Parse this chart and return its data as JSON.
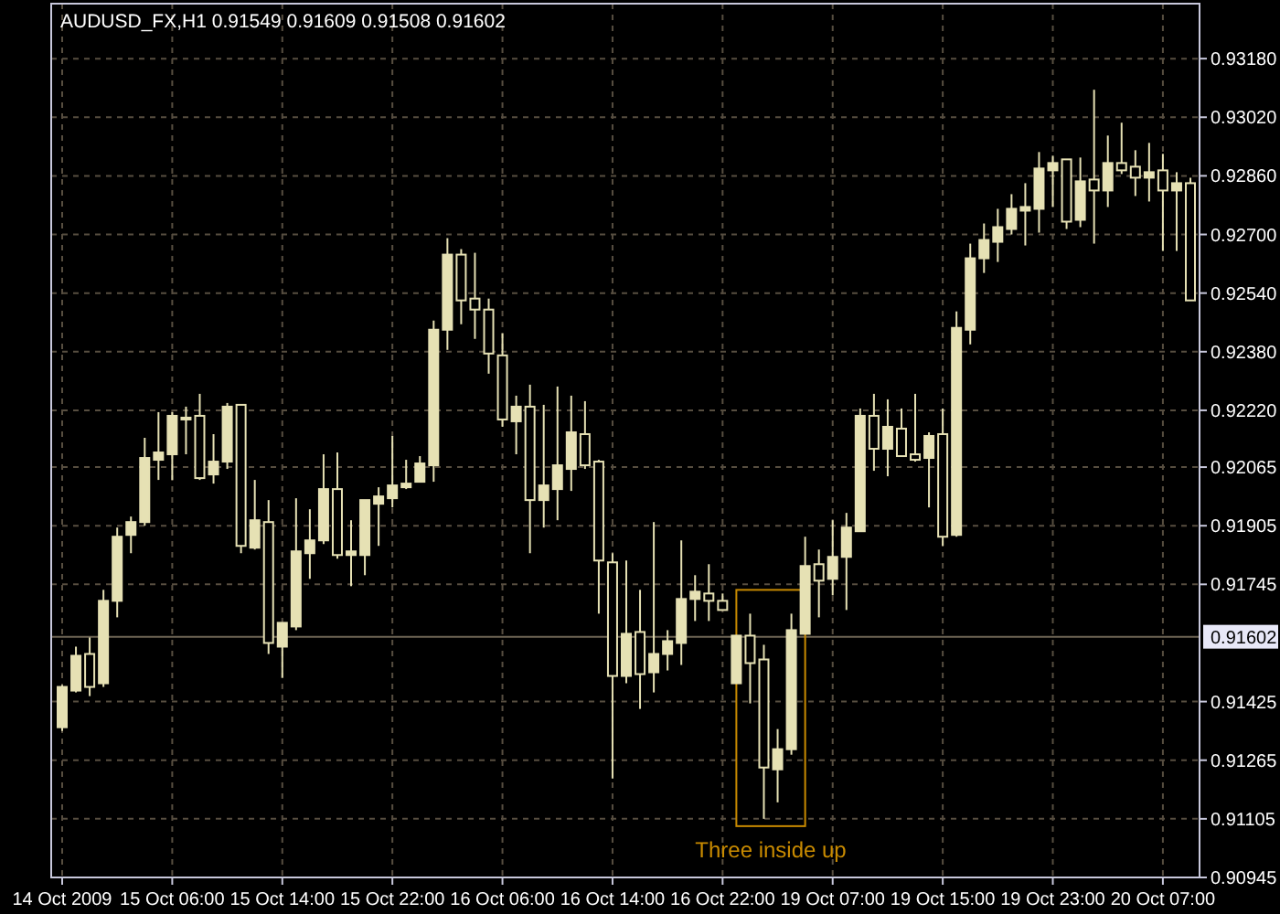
{
  "chart_data": {
    "type": "candlestick",
    "title": "AUDUSD_FX,H1 0.91549 0.91609 0.91508 0.91602",
    "color": "#e6e1b4",
    "categories": [
      "14 Oct 2009",
      null,
      null,
      null,
      null,
      null,
      null,
      null,
      "15 Oct 06:00",
      null,
      null,
      null,
      null,
      null,
      null,
      null,
      "15 Oct 14:00",
      null,
      null,
      null,
      null,
      null,
      null,
      null,
      "15 Oct 22:00",
      null,
      null,
      null,
      null,
      null,
      null,
      null,
      "16 Oct 06:00",
      null,
      null,
      null,
      null,
      null,
      null,
      null,
      "16 Oct 14:00",
      null,
      null,
      null,
      null,
      null,
      null,
      null,
      "16 Oct 22:00",
      null,
      null,
      null,
      null,
      null,
      null,
      null,
      "19 Oct 07:00",
      null,
      null,
      null,
      null,
      null,
      null,
      null,
      "19 Oct 15:00",
      null,
      null,
      null,
      null,
      null,
      null,
      null,
      "19 Oct 23:00",
      null,
      null,
      null,
      null,
      null,
      null,
      null,
      "20 Oct 07:00",
      null,
      null
    ],
    "ohlc": [
      [
        0.91355,
        0.9147,
        0.91345,
        0.91465
      ],
      [
        0.91455,
        0.91575,
        0.9145,
        0.9155
      ],
      [
        0.91555,
        0.916,
        0.9144,
        0.91465
      ],
      [
        0.91475,
        0.9173,
        0.91465,
        0.917
      ],
      [
        0.917,
        0.919,
        0.91655,
        0.91875
      ],
      [
        0.9188,
        0.9193,
        0.9183,
        0.91915
      ],
      [
        0.91915,
        0.92145,
        0.91905,
        0.9209
      ],
      [
        0.92085,
        0.92215,
        0.9203,
        0.92105
      ],
      [
        0.921,
        0.92215,
        0.9203,
        0.92205
      ],
      [
        0.92195,
        0.9223,
        0.921,
        0.922
      ],
      [
        0.92205,
        0.92265,
        0.9203,
        0.92035
      ],
      [
        0.92045,
        0.92155,
        0.9202,
        0.9208
      ],
      [
        0.9208,
        0.9224,
        0.9206,
        0.9223
      ],
      [
        0.92235,
        0.92235,
        0.9183,
        0.9185
      ],
      [
        0.91845,
        0.9203,
        0.9184,
        0.9192
      ],
      [
        0.91915,
        0.91975,
        0.91555,
        0.91585
      ],
      [
        0.91575,
        0.9164,
        0.9149,
        0.9164
      ],
      [
        0.9163,
        0.9198,
        0.9162,
        0.91835
      ],
      [
        0.9183,
        0.9195,
        0.9176,
        0.91865
      ],
      [
        0.91865,
        0.921,
        0.91855,
        0.92005
      ],
      [
        0.92005,
        0.92105,
        0.91815,
        0.91825
      ],
      [
        0.91825,
        0.9192,
        0.9174,
        0.91835
      ],
      [
        0.91825,
        0.91975,
        0.9177,
        0.91975
      ],
      [
        0.91965,
        0.9201,
        0.9185,
        0.91985
      ],
      [
        0.9198,
        0.9215,
        0.91955,
        0.92015
      ],
      [
        0.9201,
        0.92085,
        0.92005,
        0.9202
      ],
      [
        0.92025,
        0.92095,
        0.92025,
        0.92075
      ],
      [
        0.9207,
        0.92465,
        0.92025,
        0.9244
      ],
      [
        0.9244,
        0.9269,
        0.92385,
        0.92645
      ],
      [
        0.92645,
        0.9266,
        0.92455,
        0.9252
      ],
      [
        0.92525,
        0.9265,
        0.92415,
        0.92495
      ],
      [
        0.92495,
        0.92525,
        0.9232,
        0.92375
      ],
      [
        0.9237,
        0.9243,
        0.92175,
        0.92195
      ],
      [
        0.9219,
        0.9226,
        0.921,
        0.9223
      ],
      [
        0.9223,
        0.9229,
        0.9183,
        0.91975
      ],
      [
        0.91975,
        0.92235,
        0.919,
        0.92015
      ],
      [
        0.92005,
        0.92285,
        0.9192,
        0.9207
      ],
      [
        0.9206,
        0.9226,
        0.92,
        0.9216
      ],
      [
        0.92155,
        0.92245,
        0.9206,
        0.9207
      ],
      [
        0.9208,
        0.92085,
        0.91665,
        0.9181
      ],
      [
        0.91805,
        0.9183,
        0.91215,
        0.91495
      ],
      [
        0.91495,
        0.9181,
        0.91475,
        0.9161
      ],
      [
        0.91615,
        0.9173,
        0.91405,
        0.915
      ],
      [
        0.91505,
        0.91915,
        0.9145,
        0.91555
      ],
      [
        0.91555,
        0.9162,
        0.9151,
        0.9159
      ],
      [
        0.91585,
        0.91865,
        0.91525,
        0.91705
      ],
      [
        0.91705,
        0.9177,
        0.91645,
        0.91725
      ],
      [
        0.9172,
        0.918,
        0.91645,
        0.917
      ],
      [
        0.917,
        0.9172,
        0.91675,
        0.91675
      ],
      [
        0.91475,
        0.91605,
        0.91475,
        0.91605
      ],
      [
        0.91605,
        0.91665,
        0.9142,
        0.9153
      ],
      [
        0.9154,
        0.9158,
        0.91105,
        0.91245
      ],
      [
        0.9124,
        0.9135,
        0.9115,
        0.91295
      ],
      [
        0.91295,
        0.91665,
        0.9128,
        0.9162
      ],
      [
        0.9161,
        0.91875,
        0.9161,
        0.91795
      ],
      [
        0.918,
        0.9184,
        0.91655,
        0.91755
      ],
      [
        0.9176,
        0.9192,
        0.91715,
        0.9182
      ],
      [
        0.9182,
        0.9194,
        0.91675,
        0.919
      ],
      [
        0.9189,
        0.92225,
        0.9189,
        0.92205
      ],
      [
        0.92205,
        0.92265,
        0.92055,
        0.92115
      ],
      [
        0.92115,
        0.9225,
        0.9204,
        0.92175
      ],
      [
        0.9217,
        0.92225,
        0.92095,
        0.92095
      ],
      [
        0.921,
        0.92265,
        0.9208,
        0.92085
      ],
      [
        0.9209,
        0.9216,
        0.91955,
        0.9215
      ],
      [
        0.92155,
        0.92225,
        0.9185,
        0.91875
      ],
      [
        0.9188,
        0.9249,
        0.91875,
        0.92445
      ],
      [
        0.9244,
        0.92675,
        0.924,
        0.92635
      ],
      [
        0.92635,
        0.9273,
        0.92595,
        0.92685
      ],
      [
        0.9268,
        0.9277,
        0.92625,
        0.9272
      ],
      [
        0.92715,
        0.9281,
        0.927,
        0.9277
      ],
      [
        0.92765,
        0.9284,
        0.9267,
        0.92775
      ],
      [
        0.9277,
        0.92925,
        0.92705,
        0.9288
      ],
      [
        0.92875,
        0.92915,
        0.92775,
        0.92895
      ],
      [
        0.92905,
        0.92905,
        0.92715,
        0.92735
      ],
      [
        0.9274,
        0.9291,
        0.9272,
        0.92845
      ],
      [
        0.9285,
        0.93095,
        0.92675,
        0.9282
      ],
      [
        0.9282,
        0.9297,
        0.92775,
        0.92895
      ],
      [
        0.92895,
        0.93005,
        0.92865,
        0.92875
      ],
      [
        0.92885,
        0.9293,
        0.92805,
        0.92855
      ],
      [
        0.92855,
        0.9295,
        0.9279,
        0.9287
      ],
      [
        0.92875,
        0.9292,
        0.92655,
        0.9282
      ],
      [
        0.9282,
        0.9287,
        0.92655,
        0.9284
      ],
      [
        0.9284,
        0.92855,
        0.9252,
        0.9252
      ]
    ],
    "ylim": [
      0.90945,
      0.9333
    ],
    "yticks": [
      {
        "value": 0.9318,
        "label": "0.93180"
      },
      {
        "value": 0.9302,
        "label": "0.93020"
      },
      {
        "value": 0.9286,
        "label": "0.92860"
      },
      {
        "value": 0.927,
        "label": "0.92700"
      },
      {
        "value": 0.9254,
        "label": "0.92540"
      },
      {
        "value": 0.9238,
        "label": "0.92380"
      },
      {
        "value": 0.9222,
        "label": "0.92220"
      },
      {
        "value": 0.92065,
        "label": "0.92065"
      },
      {
        "value": 0.91905,
        "label": "0.91905"
      },
      {
        "value": 0.91745,
        "label": "0.91745"
      },
      {
        "value": 0.91425,
        "label": "0.91425"
      },
      {
        "value": 0.91265,
        "label": "0.91265"
      },
      {
        "value": 0.91105,
        "label": "0.91105"
      },
      {
        "value": 0.90945,
        "label": "0.90945"
      }
    ],
    "grid": true,
    "ref_lines": [
      {
        "axis": "y",
        "value": 0.91602,
        "label": "0.91602",
        "color": "#6e6454"
      }
    ],
    "annotations": [
      {
        "text": "Three inside up",
        "y": 0.91105
      }
    ]
  }
}
